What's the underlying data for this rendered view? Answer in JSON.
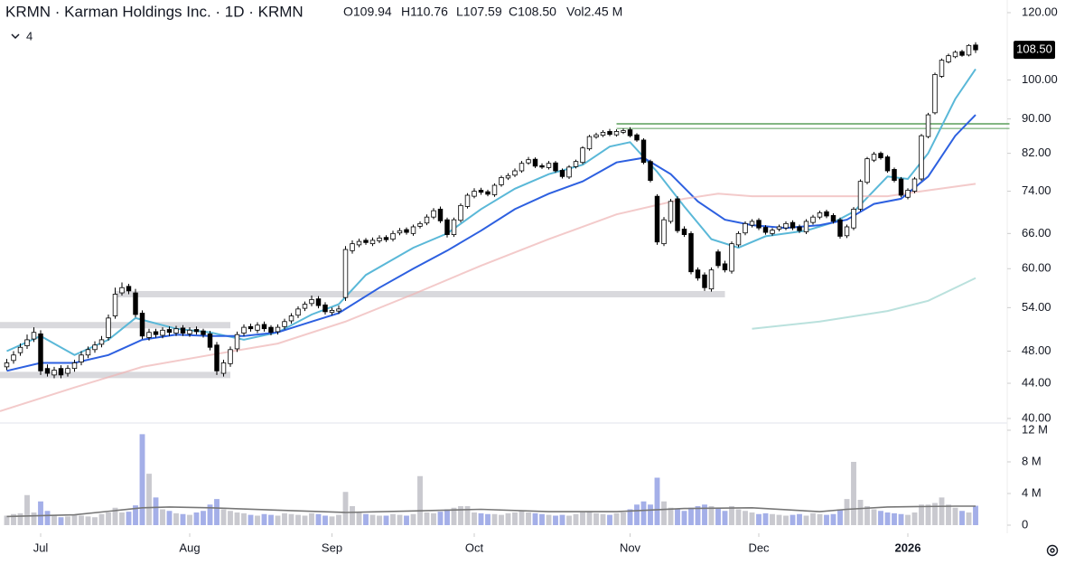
{
  "chart_data": {
    "type": "candlestick",
    "title": "KRMN · Karman Holdings Inc. · 1D · KRMN",
    "ohlc_legend": [
      "O109.94",
      "H110.76",
      "L107.59",
      "C108.50",
      "Vol2.45 M"
    ],
    "indicator_count": "4",
    "log_scale": true,
    "open": [
      46.0,
      46.8,
      47.8,
      48.7,
      49.6,
      50.3,
      45.8,
      45.0,
      45.8,
      45.2,
      45.8,
      46.6,
      47.5,
      48.2,
      48.9,
      49.8,
      52.8,
      56.2,
      57.2,
      56.2,
      53.2,
      49.8,
      50.6,
      50.1,
      50.9,
      50.4,
      51.1,
      50.3,
      50.9,
      50.7,
      50.3,
      48.8,
      45.2,
      46.4,
      48.3,
      50.4,
      51.3,
      50.8,
      51.6,
      51.2,
      50.6,
      51.3,
      52.1,
      52.9,
      53.9,
      54.6,
      55.3,
      54.4,
      53.3,
      53.5,
      55.5,
      63.0,
      64.0,
      64.8,
      64.2,
      64.7,
      65.3,
      65.0,
      66.1,
      66.7,
      66.0,
      67.3,
      67.9,
      69.0,
      70.5,
      68.5,
      65.8,
      68.4,
      71.0,
      73.0,
      74.2,
      73.9,
      73.3,
      75.3,
      76.7,
      77.3,
      78.2,
      79.9,
      80.7,
      79.3,
      78.9,
      79.9,
      78.3,
      76.9,
      79.1,
      80.0,
      83.0,
      85.7,
      86.1,
      87.0,
      86.2,
      86.8,
      87.4,
      86.2,
      85.0,
      80.2,
      73.0,
      64.2,
      68.2,
      72.5,
      66.8,
      66.0,
      59.8,
      59.0,
      56.8,
      62.8,
      60.8,
      59.6,
      64.0,
      66.1,
      67.5,
      68.4,
      67.1,
      66.0,
      66.8,
      67.0,
      68.0,
      67.2,
      66.3,
      68.0,
      69.0,
      70.0,
      69.3,
      68.5,
      65.6,
      67.0,
      70.5,
      75.8,
      80.5,
      82.0,
      81.2,
      78.5,
      76.5,
      72.8,
      74.0,
      76.5,
      85.8,
      91.5,
      101.0,
      105.0,
      106.5,
      108.0,
      107.0,
      109.94
    ],
    "high": [
      47.0,
      48.0,
      49.0,
      50.2,
      51.2,
      50.8,
      46.3,
      46.0,
      46.2,
      46.2,
      46.9,
      48.0,
      48.6,
      49.3,
      50.0,
      53.0,
      57.0,
      57.8,
      57.6,
      56.8,
      53.6,
      51.0,
      51.0,
      51.2,
      51.3,
      51.4,
      51.5,
      51.2,
      51.3,
      51.0,
      50.7,
      49.2,
      46.9,
      48.6,
      50.6,
      51.6,
      51.7,
      51.9,
      52.0,
      51.5,
      51.6,
      52.4,
      53.2,
      54.2,
      54.9,
      55.8,
      55.7,
      54.8,
      54.0,
      54.3,
      63.8,
      64.8,
      65.1,
      65.2,
      65.3,
      65.7,
      65.7,
      66.5,
      67.0,
      67.1,
      67.6,
      68.2,
      69.5,
      70.7,
      71.0,
      68.9,
      68.9,
      71.6,
      73.6,
      74.6,
      74.7,
      74.3,
      75.6,
      77.2,
      77.7,
      78.7,
      80.3,
      81.2,
      81.1,
      79.8,
      80.3,
      80.3,
      78.7,
      79.4,
      80.6,
      83.6,
      86.2,
      86.7,
      87.3,
      87.6,
      87.5,
      87.7,
      88.0,
      86.6,
      85.4,
      80.6,
      73.4,
      69.0,
      72.5,
      73.0,
      67.3,
      66.4,
      60.2,
      59.4,
      60.2,
      63.2,
      61.3,
      64.6,
      66.4,
      68.2,
      68.6,
      68.8,
      67.5,
      67.0,
      67.6,
      68.2,
      68.4,
      67.6,
      68.6,
      69.4,
      70.2,
      70.4,
      69.7,
      68.9,
      67.6,
      70.9,
      76.4,
      81.2,
      82.3,
      82.4,
      81.6,
      78.9,
      76.9,
      74.6,
      76.9,
      86.4,
      91.5,
      102.0,
      106.0,
      107.4,
      108.3,
      108.5,
      110.2,
      110.76
    ],
    "low": [
      45.6,
      46.4,
      47.4,
      48.3,
      49.2,
      45.0,
      44.8,
      44.6,
      44.6,
      44.8,
      45.4,
      46.2,
      47.1,
      47.8,
      48.5,
      49.4,
      52.4,
      55.8,
      56.0,
      52.6,
      49.6,
      49.4,
      49.8,
      49.7,
      50.0,
      50.0,
      50.0,
      49.9,
      50.2,
      49.8,
      48.1,
      45.0,
      44.8,
      46.0,
      47.9,
      50.0,
      50.6,
      50.4,
      50.6,
      50.1,
      50.2,
      50.9,
      51.7,
      52.5,
      53.5,
      54.2,
      53.9,
      53.0,
      52.9,
      53.1,
      55.0,
      62.5,
      63.6,
      64.0,
      63.8,
      64.3,
      64.5,
      64.6,
      65.7,
      65.8,
      65.6,
      66.9,
      67.5,
      68.6,
      67.9,
      65.3,
      65.4,
      68.0,
      70.6,
      72.6,
      73.3,
      73.0,
      72.9,
      74.9,
      76.3,
      76.9,
      77.8,
      79.5,
      78.8,
      78.6,
      78.5,
      77.8,
      76.6,
      76.5,
      78.7,
      79.6,
      82.6,
      85.3,
      85.7,
      85.9,
      85.8,
      86.4,
      85.6,
      84.6,
      79.6,
      75.8,
      64.0,
      63.8,
      67.8,
      66.1,
      65.4,
      59.1,
      58.1,
      56.5,
      56.4,
      60.1,
      59.4,
      59.2,
      63.6,
      65.7,
      67.1,
      66.6,
      65.8,
      65.6,
      66.4,
      66.6,
      66.6,
      66.1,
      65.9,
      67.6,
      68.6,
      68.8,
      67.8,
      65.1,
      65.2,
      66.6,
      70.1,
      75.4,
      80.1,
      80.6,
      77.8,
      75.8,
      72.8,
      72.4,
      73.6,
      76.1,
      85.4,
      91.1,
      100.6,
      104.6,
      106.1,
      106.5,
      106.6,
      107.59
    ],
    "close": [
      46.5,
      47.5,
      48.5,
      49.5,
      50.5,
      45.5,
      45.2,
      45.6,
      45.0,
      45.8,
      46.5,
      47.5,
      48.2,
      48.8,
      49.5,
      52.5,
      56.0,
      57.0,
      56.5,
      53.0,
      50.0,
      50.5,
      50.2,
      50.8,
      50.5,
      51.0,
      50.4,
      50.8,
      50.6,
      50.2,
      48.5,
      45.5,
      46.5,
      48.2,
      50.2,
      51.2,
      51.0,
      51.5,
      51.0,
      50.5,
      51.2,
      52.0,
      52.8,
      53.8,
      54.5,
      55.2,
      54.3,
      53.4,
      53.6,
      53.8,
      63.2,
      64.2,
      64.6,
      64.4,
      64.8,
      65.2,
      64.9,
      66.0,
      66.5,
      66.2,
      67.2,
      67.8,
      69.0,
      70.2,
      68.3,
      65.8,
      68.5,
      71.2,
      73.2,
      74.0,
      73.8,
      73.4,
      75.2,
      76.8,
      77.2,
      78.2,
      79.8,
      80.6,
      79.2,
      79.0,
      79.8,
      78.2,
      77.0,
      79.0,
      80.2,
      83.2,
      85.8,
      86.2,
      86.8,
      86.3,
      87.0,
      87.2,
      86.0,
      85.0,
      80.0,
      76.2,
      64.5,
      68.5,
      72.0,
      66.5,
      65.8,
      59.5,
      58.5,
      57.0,
      59.8,
      60.5,
      59.8,
      64.2,
      66.0,
      67.8,
      68.2,
      67.0,
      66.2,
      66.6,
      67.2,
      67.8,
      67.0,
      66.5,
      68.2,
      69.0,
      69.8,
      69.2,
      68.2,
      65.5,
      67.2,
      70.5,
      76.0,
      80.8,
      81.8,
      81.0,
      78.2,
      76.2,
      73.2,
      74.2,
      76.5,
      86.0,
      91.0,
      101.5,
      105.5,
      106.8,
      107.8,
      106.9,
      109.8,
      108.5
    ],
    "volume": [
      1.2,
      1.4,
      1.5,
      3.8,
      1.6,
      3.0,
      1.8,
      1.2,
      1.0,
      1.1,
      1.3,
      1.2,
      1.1,
      1.0,
      1.4,
      1.6,
      2.2,
      1.6,
      1.7,
      2.5,
      11.5,
      6.5,
      3.5,
      2.0,
      1.8,
      1.5,
      1.4,
      1.3,
      1.6,
      1.8,
      2.6,
      3.3,
      2.0,
      1.8,
      1.6,
      1.5,
      1.3,
      1.2,
      1.4,
      1.3,
      1.2,
      1.5,
      1.4,
      1.3,
      1.2,
      1.5,
      1.4,
      1.2,
      1.1,
      1.3,
      4.2,
      2.4,
      1.6,
      1.4,
      1.3,
      1.2,
      1.2,
      1.4,
      1.3,
      1.2,
      1.4,
      6.2,
      1.6,
      1.5,
      1.7,
      2.0,
      2.2,
      2.4,
      2.4,
      1.6,
      1.5,
      1.4,
      1.4,
      1.3,
      1.5,
      1.6,
      1.8,
      1.6,
      1.5,
      1.4,
      1.3,
      1.2,
      1.3,
      1.2,
      1.4,
      1.6,
      1.7,
      1.5,
      1.4,
      1.3,
      1.5,
      1.6,
      2.0,
      2.6,
      3.0,
      2.6,
      6.0,
      3.0,
      2.2,
      2.0,
      1.8,
      2.2,
      2.4,
      2.6,
      2.4,
      2.2,
      1.8,
      2.4,
      2.0,
      1.8,
      1.6,
      1.4,
      1.5,
      1.4,
      1.3,
      1.2,
      1.3,
      1.4,
      1.2,
      1.5,
      1.4,
      1.3,
      1.4,
      2.0,
      3.3,
      8.0,
      3.2,
      2.4,
      2.0,
      1.8,
      1.6,
      1.5,
      1.4,
      1.3,
      1.6,
      2.6,
      2.6,
      2.8,
      3.5,
      2.6,
      2.2,
      1.8,
      1.6,
      2.45
    ],
    "ylim": [
      40,
      120
    ],
    "yticks": [
      {
        "value": 120,
        "label": "120.00"
      },
      {
        "value": 100,
        "label": "100.00"
      },
      {
        "value": 90,
        "label": "90.00"
      },
      {
        "value": 82,
        "label": "82.00"
      },
      {
        "value": 74,
        "label": "74.00"
      },
      {
        "value": 66,
        "label": "66.00"
      },
      {
        "value": 60,
        "label": "60.00"
      },
      {
        "value": 54,
        "label": "54.00"
      },
      {
        "value": 48,
        "label": "48.00"
      },
      {
        "value": 44,
        "label": "44.00"
      },
      {
        "value": 40,
        "label": "40.00"
      }
    ],
    "volume_ylim": [
      0,
      12
    ],
    "volume_yticks": [
      {
        "value": 12,
        "label": "12 M"
      },
      {
        "value": 8,
        "label": "8 M"
      },
      {
        "value": 4,
        "label": "4 M"
      },
      0
    ],
    "xlim": [
      -1,
      147
    ],
    "xticks": [
      {
        "value": 5,
        "label": "Jul"
      },
      {
        "value": 27,
        "label": "Aug"
      },
      {
        "value": 48,
        "label": "Sep"
      },
      {
        "value": 69,
        "label": "Oct"
      },
      {
        "value": 92,
        "label": "Nov"
      },
      {
        "value": 111,
        "label": "Dec"
      },
      {
        "value": 133,
        "label": "2026"
      }
    ],
    "up_color": "#ffffff",
    "down_color": "#000000",
    "volume_up_color": "#c9c9cf",
    "volume_down_color": "#a4afe8",
    "last_price": {
      "value": 108.5,
      "label": "108.50"
    },
    "lines": [
      {
        "color": "#5ab8d8",
        "opacity": 1,
        "x": [
          0,
          5,
          10,
          15,
          19,
          25,
          30,
          35,
          40,
          45,
          49,
          53,
          60,
          65,
          70,
          75,
          80,
          85,
          89,
          92,
          96,
          100,
          104,
          108,
          112,
          118,
          122,
          125,
          130,
          133,
          136,
          140,
          143
        ],
        "values": [
          48,
          50,
          47.5,
          49.5,
          52.5,
          51,
          50.5,
          49.5,
          50.5,
          53,
          54.5,
          59,
          63.5,
          66,
          70.5,
          74.5,
          77.5,
          79.5,
          83.5,
          84.5,
          78,
          71,
          65,
          63.5,
          65.5,
          66.5,
          68,
          70,
          77,
          76.5,
          82,
          95,
          103
        ]
      },
      {
        "color": "#2d60e0",
        "opacity": 1,
        "x": [
          0,
          5,
          10,
          15,
          20,
          25,
          30,
          35,
          40,
          45,
          49,
          55,
          60,
          65,
          70,
          75,
          80,
          85,
          90,
          94,
          98,
          102,
          106,
          110,
          115,
          120,
          124,
          128,
          132,
          136,
          140,
          143
        ],
        "values": [
          45.5,
          46.5,
          46.5,
          47.5,
          49.5,
          50.2,
          50,
          50,
          50.5,
          52,
          53.2,
          57,
          60,
          63,
          66.5,
          70.5,
          73.5,
          76,
          80,
          81,
          77.5,
          72,
          68.5,
          67.5,
          67,
          67.5,
          68.5,
          71.5,
          72.5,
          77,
          86,
          91
        ]
      },
      {
        "color": "#eeb4b4",
        "opacity": 0.7,
        "x": [
          -1,
          10,
          20,
          30,
          40,
          50,
          60,
          70,
          80,
          90,
          100,
          105,
          110,
          120,
          130,
          135,
          143
        ],
        "values": [
          40.8,
          43.5,
          46,
          47.5,
          49,
          52,
          56,
          60.5,
          65,
          69.5,
          72.5,
          73.5,
          73,
          73,
          73,
          74,
          75.5
        ]
      },
      {
        "color": "#a9d9d4",
        "opacity": 0.8,
        "x": [
          110,
          120,
          130,
          136,
          143
        ],
        "values": [
          51,
          52,
          53.5,
          55,
          58.5
        ]
      }
    ],
    "volume_ma": {
      "color": "#777777",
      "x": [
        0,
        10,
        20,
        24,
        30,
        40,
        50,
        60,
        70,
        80,
        90,
        100,
        110,
        120,
        124,
        130,
        140,
        143
      ],
      "values": [
        1.1,
        1.3,
        2.2,
        2.3,
        2.2,
        1.9,
        1.6,
        1.8,
        2.0,
        1.7,
        1.7,
        2.1,
        2.2,
        1.7,
        2.0,
        2.3,
        2.4,
        2.4
      ]
    },
    "zones": [
      {
        "value": 56.0,
        "x": [
          16,
          106
        ]
      },
      {
        "value": 51.5,
        "x": [
          -1,
          33
        ]
      },
      {
        "value": 45.0,
        "x": [
          -1,
          33
        ]
      }
    ],
    "zone_color": "#cfcfd4",
    "levels": [
      {
        "value": 88.8,
        "x": [
          90,
          148
        ]
      },
      {
        "value": 87.7,
        "x": [
          90,
          148
        ]
      }
    ],
    "level_color": "#5a9e5a"
  }
}
